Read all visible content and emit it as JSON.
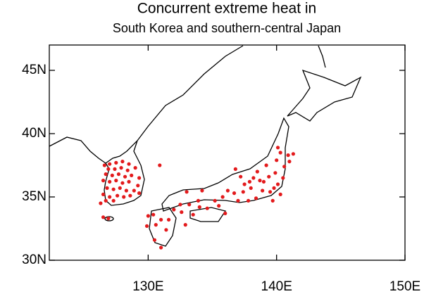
{
  "chart_data": {
    "type": "scatter",
    "title": "Concurrent extreme heat in",
    "subtitle": "South Korea and southern-central Japan",
    "color": "#e31a1c",
    "xlim": [
      122.3,
      150
    ],
    "ylim": [
      30,
      47
    ],
    "xticks": [
      {
        "value": 130,
        "label": "130E"
      },
      {
        "value": 140,
        "label": "140E"
      },
      {
        "value": 150,
        "label": "150E"
      }
    ],
    "yticks": [
      {
        "value": 30,
        "label": "30N"
      },
      {
        "value": 35,
        "label": "35N"
      },
      {
        "value": 40,
        "label": "40N"
      },
      {
        "value": 45,
        "label": "45N"
      }
    ],
    "x": [
      126.6,
      127.0,
      127.5,
      128.0,
      128.5,
      126.9,
      127.4,
      127.9,
      128.4,
      129.0,
      126.7,
      127.2,
      127.7,
      128.2,
      128.7,
      129.3,
      126.5,
      127.0,
      127.5,
      128.0,
      128.5,
      129.2,
      126.8,
      127.3,
      127.8,
      128.3,
      128.9,
      129.3,
      126.5,
      127.0,
      127.6,
      128.1,
      128.6,
      126.7,
      127.3,
      126.3,
      126.5,
      126.9,
      130.9,
      130.4,
      131.0,
      130.6,
      131.4,
      130.5,
      131.0,
      129.9,
      131.6,
      130.0,
      132.0,
      132.5,
      133.0,
      133.9,
      134.2,
      132.6,
      133.5,
      134.6,
      132.9,
      135.2,
      135.5,
      135.8,
      136.0,
      136.2,
      136.7,
      137.0,
      137.4,
      137.2,
      136.8,
      137.8,
      138.0,
      138.2,
      138.5,
      138.4,
      138.9,
      139.0,
      139.4,
      139.2,
      139.5,
      139.8,
      140.1,
      139.7,
      140.3,
      140.5,
      140.6,
      140.0,
      140.3,
      141.0,
      140.9,
      141.3,
      140.1,
      139.9,
      138.7,
      137.9,
      137.5,
      134.0,
      133.2
    ],
    "y": [
      37.5,
      37.6,
      37.7,
      37.8,
      37.6,
      37.2,
      37.2,
      37.3,
      37.1,
      37.3,
      36.8,
      36.7,
      36.8,
      36.6,
      36.7,
      36.5,
      36.3,
      36.2,
      36.3,
      36.1,
      36.2,
      35.9,
      35.7,
      35.6,
      35.7,
      35.5,
      35.5,
      35.3,
      35.2,
      35.0,
      35.1,
      35.0,
      35.1,
      34.7,
      34.7,
      34.5,
      33.4,
      33.3,
      37.5,
      33.6,
      33.2,
      32.8,
      32.4,
      31.6,
      31.0,
      32.7,
      33.2,
      33.5,
      34.0,
      34.4,
      35.4,
      34.7,
      35.5,
      33.8,
      33.6,
      34.1,
      32.8,
      34.7,
      34.3,
      35.0,
      33.7,
      35.5,
      35.3,
      34.7,
      35.4,
      36.6,
      37.2,
      34.7,
      35.7,
      36.5,
      37.0,
      34.9,
      35.5,
      36.2,
      36.6,
      37.5,
      35.4,
      35.7,
      36.0,
      34.7,
      35.2,
      36.5,
      37.4,
      37.9,
      38.5,
      37.8,
      38.3,
      38.4,
      38.9,
      36.9,
      36.3,
      36.2,
      36.0,
      34.2,
      34.4
    ]
  }
}
